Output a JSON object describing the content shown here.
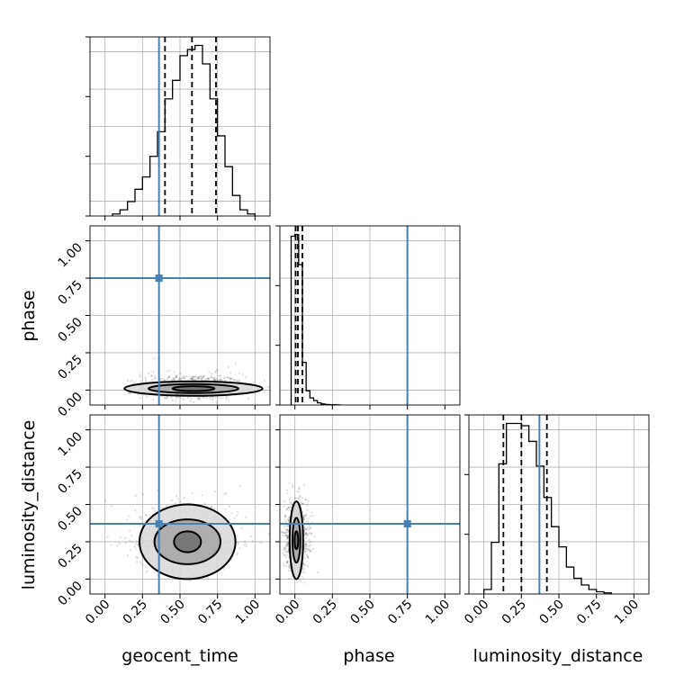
{
  "figure": {
    "type": "corner-plot",
    "parameters": [
      "geocent_time",
      "phase",
      "luminosity_distance"
    ],
    "tick_labels": [
      "0.00",
      "0.25",
      "0.50",
      "0.75",
      "1.00"
    ],
    "truth_color": "#4682b4"
  },
  "chart_data": {
    "type": "corner",
    "parameters": [
      "geocent_time",
      "phase",
      "luminosity_distance"
    ],
    "axis_range": [
      -0.1,
      1.1
    ],
    "ticks": [
      0,
      0.25,
      0.5,
      0.75,
      1.0
    ],
    "grid": true,
    "truths": {
      "geocent_time": 0.36,
      "phase": 0.75,
      "luminosity_distance": 0.37
    },
    "histograms": [
      {
        "parameter": "geocent_time",
        "bin_edges": [
          0.05,
          0.1,
          0.15,
          0.2,
          0.25,
          0.3,
          0.35,
          0.4,
          0.45,
          0.5,
          0.55,
          0.6,
          0.65,
          0.7,
          0.75,
          0.8,
          0.85,
          0.9,
          0.95,
          1.0
        ],
        "counts": [
          1,
          3,
          7,
          13,
          19,
          29,
          41,
          57,
          66,
          78,
          81,
          83,
          74,
          57,
          39,
          24,
          10,
          3,
          1
        ],
        "quantiles": [
          0.4,
          0.58,
          0.74
        ]
      },
      {
        "parameter": "phase",
        "bin_edges": [
          -0.025,
          0.0,
          0.025,
          0.05,
          0.075,
          0.1,
          0.125,
          0.15,
          0.175,
          0.2,
          0.225,
          0.25,
          0.275,
          0.3
        ],
        "counts": [
          95,
          96,
          79,
          24,
          8,
          4,
          2.5,
          1.2,
          0.6,
          0.3,
          0.2,
          0.1,
          0.05
        ],
        "quantiles": [
          0.005,
          0.02,
          0.05
        ]
      },
      {
        "parameter": "luminosity_distance",
        "bin_edges": [
          0.0,
          0.05,
          0.1,
          0.15,
          0.2,
          0.25,
          0.3,
          0.35,
          0.4,
          0.45,
          0.5,
          0.55,
          0.6,
          0.65,
          0.7,
          0.75,
          0.8,
          0.85
        ],
        "counts": [
          2,
          23,
          58,
          76,
          76,
          75,
          68,
          57,
          43,
          30,
          21,
          12,
          7,
          4,
          2,
          1,
          0.5
        ],
        "quantiles": [
          0.13,
          0.25,
          0.42
        ]
      }
    ],
    "scatter_panels": [
      {
        "x": "geocent_time",
        "y": "phase",
        "center": [
          0.59,
          0.01
        ],
        "spread": [
          0.17,
          0.04
        ],
        "contour_levels": [
          [
            0.14,
            0.016
          ],
          [
            0.3,
            0.03
          ],
          [
            0.46,
            0.048
          ]
        ]
      },
      {
        "x": "geocent_time",
        "y": "luminosity_distance",
        "center": [
          0.55,
          0.25
        ],
        "spread": [
          0.17,
          0.13
        ],
        "contour_levels": [
          [
            0.09,
            0.07
          ],
          [
            0.22,
            0.15
          ],
          [
            0.32,
            0.25
          ]
        ]
      },
      {
        "x": "phase",
        "y": "luminosity_distance",
        "center": [
          0.01,
          0.26
        ],
        "spread": [
          0.04,
          0.14
        ],
        "contour_levels": [
          [
            0.012,
            0.06
          ],
          [
            0.026,
            0.15
          ],
          [
            0.045,
            0.26
          ]
        ]
      }
    ]
  }
}
